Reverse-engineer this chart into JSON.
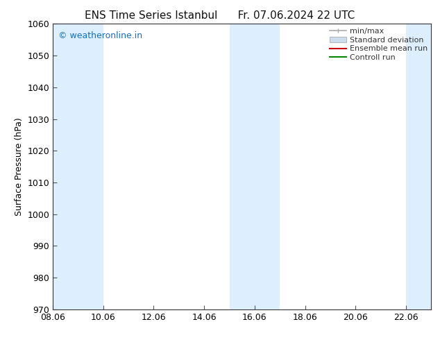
{
  "title_left": "ENS Time Series Istanbul",
  "title_right": "Fr. 07.06.2024 22 UTC",
  "ylabel": "Surface Pressure (hPa)",
  "ylim": [
    970,
    1060
  ],
  "yticks": [
    970,
    980,
    990,
    1000,
    1010,
    1020,
    1030,
    1040,
    1050,
    1060
  ],
  "xlim_min": 8.06,
  "xlim_max": 23.06,
  "xticks": [
    8.06,
    10.06,
    12.06,
    14.06,
    16.06,
    18.06,
    20.06,
    22.06
  ],
  "xlabel_format": [
    "08.06",
    "10.06",
    "12.06",
    "14.06",
    "16.06",
    "18.06",
    "20.06",
    "22.06"
  ],
  "bg_color": "#ffffff",
  "plot_bg_color": "#ffffff",
  "shaded_bands": [
    {
      "xmin": 8.06,
      "xmax": 10.06,
      "color": "#ddeeff"
    },
    {
      "xmin": 15.06,
      "xmax": 17.06,
      "color": "#ddeeff"
    },
    {
      "xmin": 22.06,
      "xmax": 23.1,
      "color": "#ddeeff"
    }
  ],
  "watermark_text": "© weatheronline.in",
  "watermark_color": "#1a6fba",
  "watermark_fontsize": 9,
  "title_fontsize": 11,
  "label_fontsize": 9,
  "tick_fontsize": 9,
  "legend_fontsize": 8,
  "legend_label_color": "#333333",
  "minmax_color": "#aaaaaa",
  "std_face_color": "#ccddee",
  "std_edge_color": "#aaaaaa",
  "ens_color": "#cc0000",
  "ctrl_color": "#008800"
}
